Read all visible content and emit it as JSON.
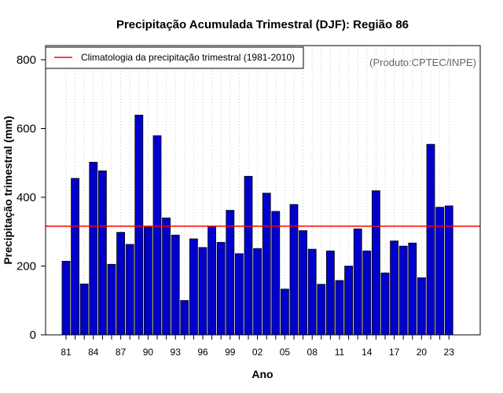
{
  "chart_data": {
    "type": "bar",
    "title": "Precipitação Acumulada Trimestral (DJF): Região 86",
    "xlabel": "Ano",
    "ylabel": "Precipitação trimestral (mm)",
    "ylim": [
      0,
      800
    ],
    "yticks": [
      0,
      200,
      400,
      600,
      800
    ],
    "grid": "vertical dotted lines at each year",
    "legend_position": "top-left",
    "legend_label": "Climatologia da precipitação trimestral (1981-2010)",
    "credit": "(Produto:CPTEC/INPE)",
    "years": [
      1981,
      1982,
      1983,
      1984,
      1985,
      1986,
      1987,
      1988,
      1989,
      1990,
      1991,
      1992,
      1993,
      1994,
      1995,
      1996,
      1997,
      1998,
      1999,
      2000,
      2001,
      2002,
      2003,
      2004,
      2005,
      2006,
      2007,
      2008,
      2009,
      2010,
      2011,
      2012,
      2013,
      2014,
      2015,
      2016,
      2017,
      2018,
      2019,
      2020,
      2021,
      2022,
      2023
    ],
    "x_tick_labels": [
      "81",
      "84",
      "87",
      "90",
      "93",
      "96",
      "99",
      "02",
      "05",
      "08",
      "11",
      "14",
      "17",
      "20",
      "23"
    ],
    "x_tick_years": [
      1981,
      1984,
      1987,
      1990,
      1993,
      1996,
      1999,
      2002,
      2005,
      2008,
      2011,
      2014,
      2017,
      2020,
      2023
    ],
    "values": [
      214,
      455,
      148,
      502,
      477,
      205,
      298,
      263,
      639,
      313,
      579,
      340,
      290,
      100,
      279,
      254,
      316,
      269,
      362,
      236,
      461,
      251,
      412,
      359,
      133,
      379,
      303,
      249,
      147,
      244,
      158,
      200,
      308,
      244,
      419,
      180,
      273,
      258,
      267,
      166,
      554,
      371,
      375
    ],
    "climatology": 316,
    "colors": {
      "bar_fill": "#0000CD",
      "bar_stroke": "#000000",
      "climatology_line": "#FF0000",
      "grid": "#C8C8C8"
    }
  }
}
